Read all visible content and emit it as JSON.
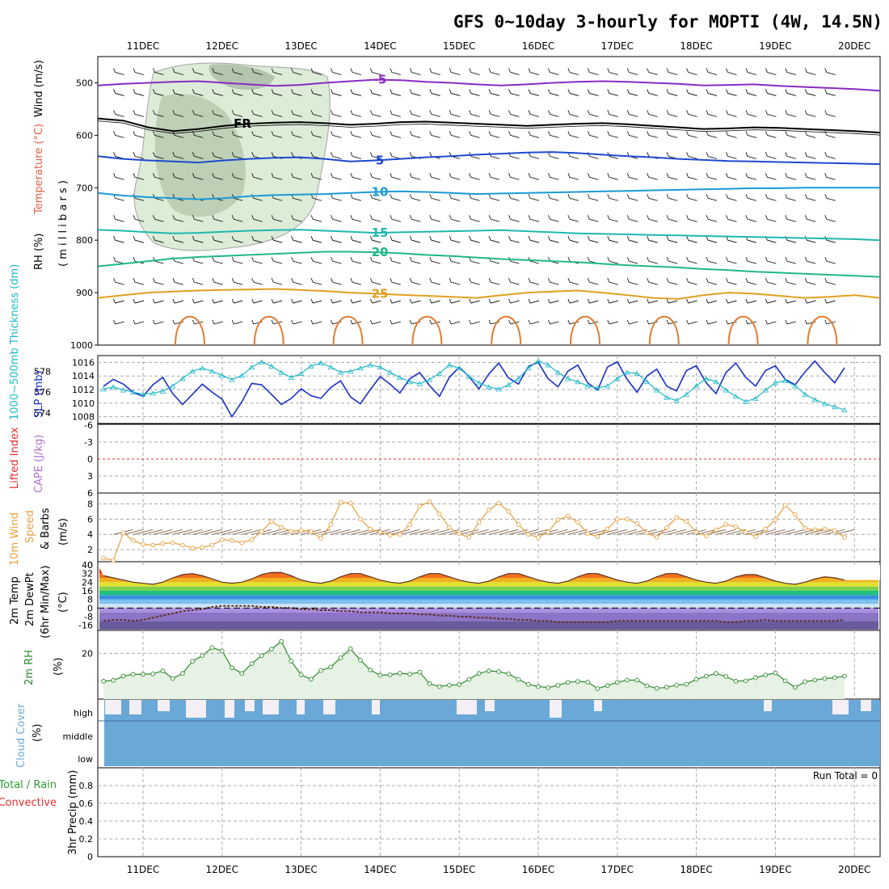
{
  "title": "GFS 0~10day 3-hourly for MOPTI (4W, 14.5N)",
  "x_ticks": [
    "11DEC",
    "12DEC",
    "13DEC",
    "14DEC",
    "15DEC",
    "16DEC",
    "17DEC",
    "18DEC",
    "19DEC",
    "20DEC"
  ],
  "panels": {
    "upper_air": {
      "ylabel_rh": "RH (%)",
      "ylabel_temp": "Temperature (°C)",
      "ylabel_wind": "Wind (m/s)",
      "ylabel_units": "( m i l l i b a r s )",
      "ticks": [
        "500",
        "600",
        "700",
        "800",
        "900",
        "1000"
      ]
    },
    "thickness": {
      "ylabel_left": "1000~500mb Thickness (dm)",
      "ylabel_right": "SLP (mb)",
      "ticks_left": [
        "578",
        "576",
        "574"
      ],
      "ticks_right": [
        "1016",
        "1014",
        "1012",
        "1010",
        "1008"
      ]
    },
    "lifted": {
      "ylabel_li": "Lifted Index",
      "ylabel_cape": "CAPE (J/kg)",
      "ticks": [
        "-6",
        "-3",
        "0",
        "3",
        "6"
      ]
    },
    "wind10": {
      "ylabel_a": "10m Wind",
      "ylabel_b": "Speed",
      "ylabel_c": "& Barbs",
      "ylabel_units": "(m/s)",
      "ticks": [
        "8",
        "6",
        "4",
        "2",
        "0"
      ]
    },
    "temp2m": {
      "ylabel_a": "2m Temp",
      "ylabel_b": "2m DewPt",
      "ylabel_c": "(6hr Min/Max)",
      "ylabel_units": "(°C)",
      "ticks": [
        "40",
        "32",
        "24",
        "16",
        "8",
        "0",
        "-8",
        "-16"
      ]
    },
    "rh2m": {
      "ylabel": "2m RH",
      "ylabel_units": "(%)",
      "ticks": [
        "20"
      ]
    },
    "cloud": {
      "ylabel": "Cloud Cover",
      "ylabel_units": "(%)",
      "levels": [
        "high",
        "middle",
        "low"
      ]
    },
    "precip": {
      "ylabel_a": "Total / Rain",
      "ylabel_b": "Convective",
      "ylabel_c": "3hr Precip (mm)",
      "ticks": [
        "0.8",
        "0.6",
        "0.4",
        "0.2",
        "0"
      ],
      "run_total": "Run Total = 0"
    }
  },
  "colors": {
    "rh_fill": "#d9ead3",
    "slp": "#1a2fc8",
    "thickness": "#22b8c8",
    "wind_speed": "#e8a040",
    "rh2m": "#2e8b2e",
    "cloud": "#6aa8d8",
    "lifted_index_zero": "#e03030"
  },
  "chart_data": [
    {
      "type": "line",
      "name": "upper-air temperature contours",
      "labels": [
        "-5",
        "FR",
        "5",
        "10",
        "15",
        "20",
        "25"
      ],
      "ylim": [
        1000,
        450
      ],
      "contours": [
        {
          "label": "-5",
          "levels": [
            505,
            502,
            500,
            498,
            497,
            500,
            503,
            506,
            504,
            500,
            497,
            494,
            495,
            498,
            500,
            503,
            505,
            503,
            500,
            498,
            497,
            498,
            500,
            502,
            505,
            504,
            503,
            506,
            508,
            510,
            512,
            515
          ]
        },
        {
          "label": "FR",
          "levels": [
            568,
            572,
            585,
            592,
            588,
            582,
            578,
            576,
            575,
            577,
            580,
            578,
            575,
            574,
            576,
            578,
            580,
            582,
            580,
            578,
            577,
            579,
            582,
            585,
            588,
            587,
            585,
            586,
            588,
            590,
            592,
            595
          ]
        },
        {
          "label": "5",
          "levels": [
            640,
            645,
            648,
            650,
            652,
            648,
            645,
            643,
            642,
            645,
            650,
            648,
            645,
            642,
            640,
            637,
            635,
            633,
            632,
            634,
            637,
            640,
            642,
            645,
            647,
            649,
            650,
            651,
            652,
            653,
            654,
            655
          ]
        },
        {
          "label": "10",
          "levels": [
            710,
            715,
            718,
            720,
            722,
            720,
            716,
            714,
            713,
            712,
            710,
            708,
            707,
            708,
            710,
            712,
            711,
            710,
            709,
            708,
            707,
            706,
            705,
            704,
            703,
            702,
            701,
            701,
            700,
            700,
            700,
            700
          ]
        },
        {
          "label": "15",
          "levels": [
            780,
            782,
            785,
            787,
            786,
            784,
            782,
            781,
            780,
            782,
            784,
            786,
            785,
            784,
            783,
            782,
            781,
            783,
            785,
            787,
            788,
            789,
            790,
            791,
            792,
            793,
            794,
            795,
            796,
            797,
            798,
            800
          ]
        },
        {
          "label": "20",
          "levels": [
            850,
            845,
            840,
            835,
            832,
            830,
            828,
            826,
            824,
            822,
            822,
            823,
            825,
            828,
            830,
            833,
            836,
            838,
            840,
            842,
            845,
            848,
            850,
            852,
            855,
            857,
            860,
            862,
            864,
            866,
            868,
            870
          ]
        },
        {
          "label": "25",
          "levels": [
            910,
            905,
            900,
            898,
            896,
            895,
            894,
            893,
            895,
            897,
            900,
            902,
            904,
            906,
            908,
            910,
            905,
            900,
            898,
            896,
            900,
            905,
            910,
            912,
            905,
            900,
            902,
            906,
            910,
            908,
            905,
            910
          ]
        }
      ]
    },
    {
      "type": "line",
      "x_unit": "3-hourly steps from 10DEC 12Z",
      "series": [
        {
          "name": "SLP (mb)",
          "values": [
            1012.5,
            1013.5,
            1012.8,
            1011.6,
            1011.0,
            1012.7,
            1013.8,
            1011.4,
            1009.8,
            1011.3,
            1012.8,
            1011.6,
            1010.6,
            1008.0,
            1010.2,
            1012.9,
            1012.7,
            1011.3,
            1009.8,
            1010.7,
            1012.1,
            1011.1,
            1010.7,
            1012.3,
            1013.3,
            1010.9,
            1009.9,
            1012.0,
            1013.9,
            1012.8,
            1011.5,
            1013.6,
            1014.5,
            1012.6,
            1011.0,
            1013.8,
            1015.3,
            1013.9,
            1012.1,
            1014.3,
            1015.9,
            1013.7,
            1012.8,
            1015.4,
            1016.0,
            1013.6,
            1012.4,
            1014.7,
            1015.6,
            1013.0,
            1011.9,
            1015.3,
            1016.1,
            1013.5,
            1011.6,
            1014.0,
            1015.0,
            1012.5,
            1011.8,
            1014.8,
            1015.5,
            1013.0,
            1011.4,
            1014.5,
            1015.9,
            1013.8,
            1012.5,
            1014.8,
            1015.5,
            1013.5,
            1012.7,
            1014.6,
            1016.2,
            1014.5,
            1013.0,
            1015.2
          ]
        },
        {
          "name": "Thickness (dm)",
          "values": [
            576.3,
            576.5,
            576.2,
            576.0,
            575.8,
            575.9,
            576.1,
            576.6,
            577.3,
            578.0,
            578.3,
            578.0,
            577.6,
            577.2,
            577.6,
            578.4,
            578.9,
            578.5,
            577.9,
            577.4,
            577.8,
            578.5,
            578.8,
            578.4,
            577.9,
            578.0,
            578.3,
            578.6,
            578.4,
            577.9,
            577.4,
            577.0,
            576.8,
            577.2,
            577.8,
            578.6,
            578.3,
            577.5,
            576.9,
            576.5,
            576.3,
            576.7,
            577.3,
            578.3,
            579.0,
            578.6,
            577.9,
            577.3,
            577.0,
            576.6,
            576.4,
            576.6,
            577.3,
            577.9,
            577.8,
            577.0,
            576.2,
            575.5,
            575.2,
            575.8,
            576.6,
            577.3,
            577.0,
            576.2,
            575.6,
            575.1,
            575.4,
            576.2,
            576.9,
            577.1,
            576.6,
            575.8,
            575.3,
            574.9,
            574.6,
            574.3
          ]
        }
      ],
      "ylim_slp": [
        1007,
        1017
      ],
      "ylim_thickness": [
        573,
        579.5
      ]
    },
    {
      "type": "line",
      "name": "10m wind speed (m/s)",
      "values": [
        0.9,
        0.6,
        4.2,
        3.2,
        2.7,
        2.6,
        2.8,
        2.9,
        2.6,
        2.2,
        2.3,
        2.6,
        3.3,
        3.2,
        2.9,
        3.3,
        4.4,
        5.7,
        4.9,
        4.4,
        4.5,
        4.4,
        3.5,
        5.3,
        8.2,
        8.1,
        6.0,
        4.7,
        4.3,
        3.9,
        4.0,
        5.3,
        7.7,
        8.3,
        6.7,
        4.9,
        4.1,
        3.6,
        5.6,
        7.2,
        8.1,
        7.0,
        5.3,
        4.0,
        3.6,
        4.3,
        5.9,
        6.4,
        5.6,
        4.1,
        3.7,
        4.7,
        6.0,
        6.0,
        5.4,
        4.2,
        3.6,
        4.9,
        6.2,
        5.7,
        4.3,
        3.8,
        4.6,
        5.3,
        5.0,
        4.3,
        3.7,
        4.7,
        5.9,
        7.8,
        6.6,
        4.8,
        4.6,
        4.7,
        4.5,
        3.6
      ],
      "ylim": [
        0,
        9
      ]
    },
    {
      "type": "area",
      "name": "2m temp (°C)",
      "values": [
        30,
        28,
        26,
        24,
        23,
        22,
        24,
        28,
        31,
        32,
        30,
        27,
        24,
        23,
        24,
        27,
        31,
        33,
        33,
        30,
        26,
        24,
        23,
        25,
        29,
        32,
        32,
        29,
        26,
        24,
        23,
        25,
        29,
        32,
        32,
        29,
        26,
        24,
        23,
        25,
        29,
        32,
        32,
        29,
        26,
        24,
        23,
        25,
        29,
        32,
        32,
        29,
        26,
        24,
        23,
        25,
        29,
        32,
        32,
        29,
        26,
        24,
        23,
        25,
        29,
        31,
        31,
        28,
        25,
        23,
        22,
        24,
        27,
        29,
        28,
        26
      ],
      "dewpoint": [
        -12,
        -11,
        -11,
        -12,
        -11,
        -9,
        -7,
        -5,
        -3,
        -2,
        -1,
        1,
        2,
        2,
        2,
        2,
        1,
        1,
        0,
        0,
        -1,
        -1,
        -2,
        -2,
        -3,
        -3,
        -4,
        -4,
        -4,
        -5,
        -5,
        -5,
        -6,
        -6,
        -7,
        -7,
        -8,
        -8,
        -9,
        -9,
        -10,
        -10,
        -11,
        -11,
        -12,
        -12,
        -13,
        -13,
        -13,
        -13,
        -13,
        -13,
        -12,
        -12,
        -12,
        -12,
        -12,
        -12,
        -12,
        -12,
        -12,
        -12,
        -12,
        -13,
        -13,
        -12,
        -12,
        -11,
        -12,
        -12,
        -12,
        -12,
        -12,
        -12,
        -12,
        -11
      ],
      "ylim": [
        -20,
        40
      ]
    },
    {
      "type": "area",
      "name": "2m RH (%)",
      "values": [
        7.8,
        8.2,
        10.0,
        10.8,
        10.8,
        11.0,
        12.3,
        9.0,
        11.2,
        16.5,
        19.0,
        22.5,
        21.0,
        13.7,
        11.2,
        15.5,
        19.0,
        21.8,
        25.2,
        16.6,
        10.6,
        8.7,
        12.5,
        14.0,
        18.0,
        22.0,
        17.0,
        12.7,
        10.4,
        10.6,
        11.3,
        10.9,
        11.8,
        6.7,
        5.5,
        6.1,
        6.3,
        8.6,
        11.2,
        12.3,
        12.0,
        11.0,
        8.6,
        6.4,
        5.5,
        5.0,
        6.0,
        7.3,
        7.7,
        7.4,
        4.6,
        5.9,
        7.3,
        8.3,
        8.3,
        5.8,
        4.7,
        5.2,
        6.1,
        6.5,
        8.6,
        10.0,
        11.2,
        9.9,
        7.8,
        8.0,
        9.3,
        10.5,
        11.4,
        8.0,
        5.1,
        7.6,
        8.3,
        9.0,
        9.3,
        10.0
      ],
      "ylim": [
        0,
        30
      ]
    },
    {
      "type": "bar",
      "name": "high cloud cover (%)",
      "values": [
        30,
        0,
        0,
        50,
        0,
        0,
        0,
        0,
        100,
        0,
        0,
        0,
        0,
        0,
        0,
        0,
        60,
        40,
        0,
        0,
        0,
        0,
        0,
        0,
        0,
        0,
        0,
        0,
        0,
        0,
        0,
        0,
        0,
        0,
        0,
        0,
        0,
        0,
        0,
        0,
        0,
        0,
        0,
        0,
        0,
        0,
        0,
        0,
        0,
        0,
        0,
        0,
        0,
        0,
        0,
        0,
        0,
        0,
        0,
        0,
        0,
        0,
        0,
        0,
        0,
        0,
        0,
        0,
        0,
        0,
        0,
        0,
        0,
        0,
        0,
        0
      ]
    },
    {
      "type": "bar",
      "name": "3hr precip (mm)",
      "values": [],
      "ylim": [
        0,
        1
      ]
    }
  ]
}
